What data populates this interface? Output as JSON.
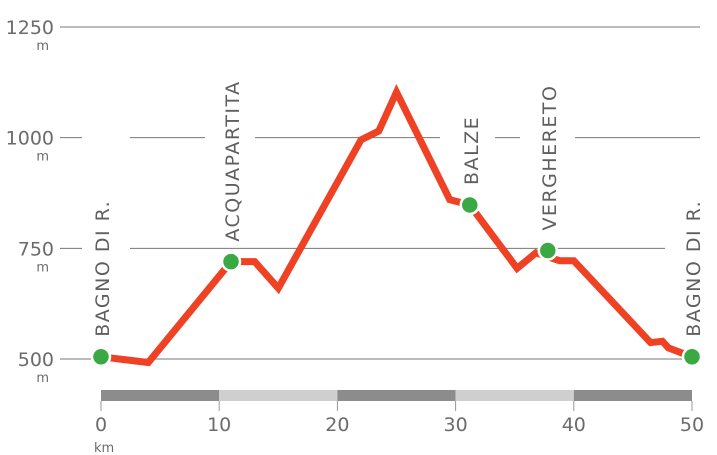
{
  "chart_data": {
    "type": "line",
    "title": "",
    "xlabel": "",
    "ylabel": "",
    "x_unit": "km",
    "y_unit": "m",
    "xlim": [
      0,
      50
    ],
    "ylim": [
      450,
      1250
    ],
    "x_ticks": [
      0,
      10,
      20,
      30,
      40,
      50
    ],
    "x_tick_labels": [
      "0",
      "10",
      "20",
      "30",
      "40",
      "50"
    ],
    "y_ticks": [
      500,
      750,
      1000,
      1250
    ],
    "y_tick_labels": [
      "500",
      "750",
      "1000",
      "1250"
    ],
    "grid": true,
    "line_color": "#ef4123",
    "marker_color": "#3aa843",
    "profile": [
      {
        "x": 0,
        "y": 505
      },
      {
        "x": 4,
        "y": 492
      },
      {
        "x": 11,
        "y": 720
      },
      {
        "x": 13,
        "y": 720
      },
      {
        "x": 15,
        "y": 660
      },
      {
        "x": 22,
        "y": 995
      },
      {
        "x": 23.5,
        "y": 1015
      },
      {
        "x": 25,
        "y": 1103
      },
      {
        "x": 29.5,
        "y": 860
      },
      {
        "x": 31.2,
        "y": 848
      },
      {
        "x": 35.2,
        "y": 705
      },
      {
        "x": 36.8,
        "y": 740
      },
      {
        "x": 38.8,
        "y": 722
      },
      {
        "x": 40,
        "y": 722
      },
      {
        "x": 46.5,
        "y": 537
      },
      {
        "x": 47.5,
        "y": 540
      },
      {
        "x": 48,
        "y": 525
      },
      {
        "x": 50,
        "y": 505
      }
    ],
    "waypoints": [
      {
        "name": "BAGNO DI R.",
        "x": 0,
        "y": 505
      },
      {
        "name": "ACQUAPARTITA",
        "x": 11,
        "y": 720
      },
      {
        "name": "BALZE",
        "x": 31.2,
        "y": 848
      },
      {
        "name": "VERGHERETO",
        "x": 37.8,
        "y": 745
      },
      {
        "name": "BAGNO DI R.",
        "x": 50,
        "y": 505
      }
    ],
    "scale_bar": {
      "segments": 5,
      "colors": [
        "#8c8c8c",
        "#cfcfcf"
      ]
    }
  }
}
